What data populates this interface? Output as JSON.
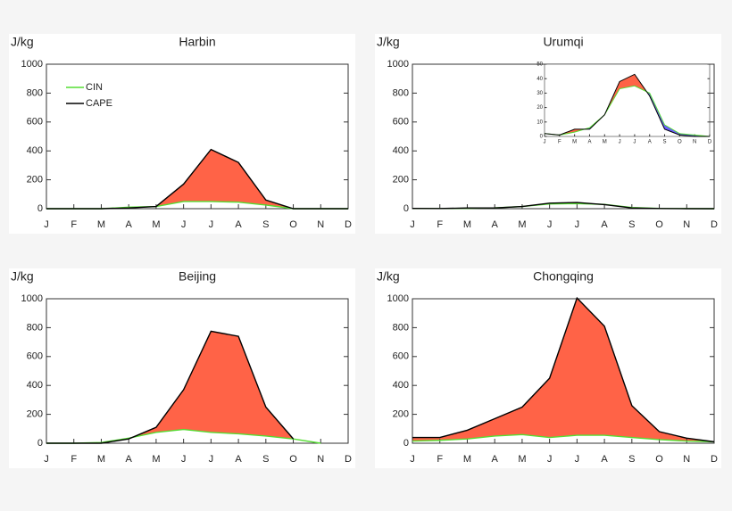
{
  "chart_data": [
    {
      "type": "line",
      "title": "Harbin",
      "ylabel": "J/kg",
      "categories": [
        "J",
        "F",
        "M",
        "A",
        "M",
        "J",
        "J",
        "A",
        "S",
        "O",
        "N",
        "D"
      ],
      "ylim": [
        0,
        1000
      ],
      "yticks": [
        0,
        200,
        400,
        600,
        800,
        1000
      ],
      "fill_colors": {
        "above": "#ff6347",
        "below": "#6a5cff"
      },
      "legend": "upper left",
      "series": [
        {
          "name": "CIN",
          "color": "#55dd33",
          "values": [
            0,
            0,
            0,
            10,
            15,
            50,
            50,
            45,
            25,
            0,
            0,
            0
          ]
        },
        {
          "name": "CAPE",
          "color": "#000000",
          "values": [
            0,
            0,
            0,
            5,
            15,
            170,
            410,
            320,
            60,
            0,
            0,
            0
          ]
        }
      ]
    },
    {
      "type": "line",
      "title": "Urumqi",
      "ylabel": "J/kg",
      "categories": [
        "J",
        "F",
        "M",
        "A",
        "M",
        "J",
        "J",
        "A",
        "S",
        "O",
        "N",
        "D"
      ],
      "ylim": [
        0,
        1000
      ],
      "yticks": [
        0,
        200,
        400,
        600,
        800,
        1000
      ],
      "fill_colors": {
        "above": "#ff6347",
        "below": "#6a5cff"
      },
      "inset": {
        "ylim": [
          0,
          50
        ],
        "yticks": [
          0,
          10,
          20,
          30,
          40,
          50
        ]
      },
      "series": [
        {
          "color": "#55dd33",
          "values": [
            2,
            1,
            3,
            6,
            15,
            33,
            35,
            30,
            8,
            2,
            1,
            0
          ]
        },
        {
          "color": "#000000",
          "values": [
            2,
            1,
            5,
            5,
            15,
            38,
            43,
            28,
            5,
            1,
            0,
            0
          ]
        }
      ]
    },
    {
      "type": "line",
      "title": "Beijing",
      "ylabel": "J/kg",
      "categories": [
        "J",
        "F",
        "M",
        "A",
        "M",
        "J",
        "J",
        "A",
        "S",
        "O",
        "N",
        "D"
      ],
      "ylim": [
        0,
        1000
      ],
      "yticks": [
        0,
        200,
        400,
        600,
        800,
        1000
      ],
      "fill_colors": {
        "above": "#ff6347",
        "below": "#6a5cff"
      },
      "series": [
        {
          "color": "#55dd33",
          "values": [
            0,
            0,
            5,
            35,
            75,
            95,
            75,
            65,
            50,
            30,
            0,
            null
          ]
        },
        {
          "color": "#000000",
          "values": [
            0,
            0,
            0,
            30,
            110,
            370,
            775,
            740,
            250,
            30,
            null,
            null
          ]
        }
      ]
    },
    {
      "type": "line",
      "title": "Chongqing",
      "ylabel": "J/kg",
      "categories": [
        "J",
        "F",
        "M",
        "A",
        "M",
        "J",
        "J",
        "A",
        "S",
        "O",
        "N",
        "D"
      ],
      "ylim": [
        0,
        1000
      ],
      "yticks": [
        0,
        200,
        400,
        600,
        800,
        1000
      ],
      "fill_colors": {
        "above": "#ff6347",
        "below": "#6a5cff"
      },
      "series": [
        {
          "color": "#55dd33",
          "values": [
            15,
            20,
            30,
            50,
            60,
            40,
            55,
            55,
            40,
            25,
            15,
            10
          ]
        },
        {
          "color": "#000000",
          "values": [
            40,
            40,
            90,
            170,
            250,
            450,
            1005,
            810,
            260,
            80,
            35,
            10
          ]
        }
      ]
    }
  ]
}
